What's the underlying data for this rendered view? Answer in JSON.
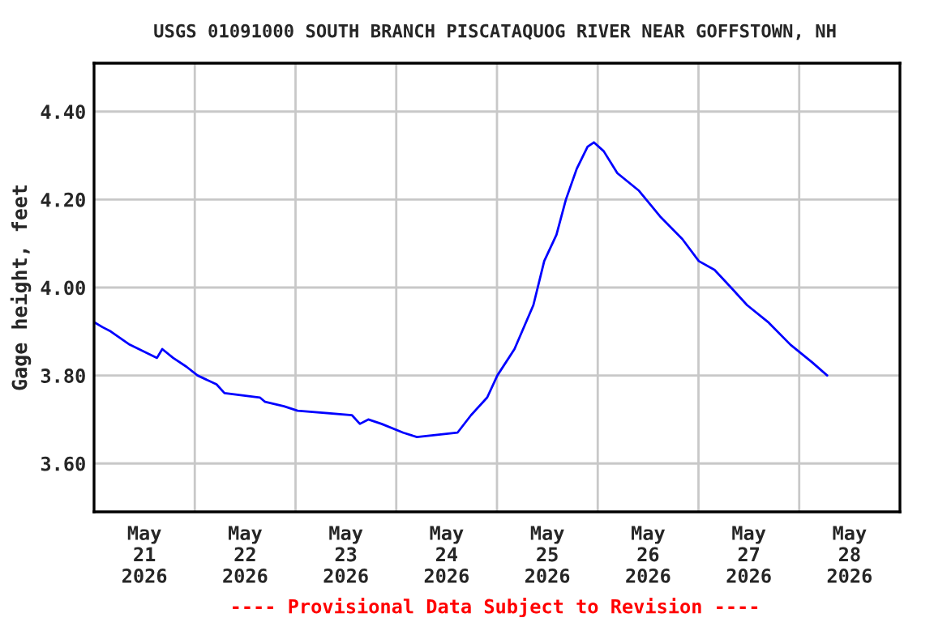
{
  "chart_data": {
    "type": "line",
    "title": "USGS 01091000 SOUTH BRANCH PISCATAQUOG RIVER NEAR GOFFSTOWN, NH",
    "ylabel": "Gage height, feet",
    "x": [
      "2026-05-21T00:15",
      "2026-05-21T02:00",
      "2026-05-21T04:00",
      "2026-05-21T08:30",
      "2026-05-21T15:00",
      "2026-05-21T16:15",
      "2026-05-21T18:50",
      "2026-05-21T22:00",
      "2026-05-22T00:40",
      "2026-05-22T05:10",
      "2026-05-22T07:05",
      "2026-05-22T15:30",
      "2026-05-22T16:45",
      "2026-05-22T21:15",
      "2026-05-23T00:30",
      "2026-05-23T13:25",
      "2026-05-23T15:20",
      "2026-05-23T17:20",
      "2026-05-23T20:30",
      "2026-05-24T01:40",
      "2026-05-24T04:55",
      "2026-05-24T14:35",
      "2026-05-24T17:50",
      "2026-05-24T21:40",
      "2026-05-25T00:05",
      "2026-05-25T04:10",
      "2026-05-25T08:40",
      "2026-05-25T11:15",
      "2026-05-25T14:10",
      "2026-05-25T16:25",
      "2026-05-25T19:00",
      "2026-05-25T21:35",
      "2026-05-25T23:05",
      "2026-05-26T01:25",
      "2026-05-26T04:40",
      "2026-05-26T09:50",
      "2026-05-26T15:00",
      "2026-05-26T20:10",
      "2026-05-27T00:05",
      "2026-05-27T03:50",
      "2026-05-27T07:45",
      "2026-05-27T11:35",
      "2026-05-27T16:45",
      "2026-05-27T21:55",
      "2026-05-28T03:05",
      "2026-05-28T06:40"
    ],
    "series": [
      {
        "color": "#0000ff",
        "values": [
          3.92,
          3.91,
          3.9,
          3.87,
          3.84,
          3.86,
          3.84,
          3.82,
          3.8,
          3.78,
          3.76,
          3.75,
          3.74,
          3.73,
          3.72,
          3.71,
          3.69,
          3.7,
          3.69,
          3.67,
          3.66,
          3.67,
          3.71,
          3.75,
          3.8,
          3.86,
          3.96,
          4.06,
          4.12,
          4.2,
          4.27,
          4.32,
          4.33,
          4.31,
          4.26,
          4.22,
          4.16,
          4.11,
          4.06,
          4.04,
          4.0,
          3.96,
          3.92,
          3.87,
          3.83,
          3.8
        ]
      }
    ],
    "xlim": [
      "2026-05-21",
      "2026-05-29"
    ],
    "xticks": [
      {
        "value": "2026-05-21T12:00",
        "label": "May\n21\n2026"
      },
      {
        "value": "2026-05-22T12:00",
        "label": "May\n22\n2026"
      },
      {
        "value": "2026-05-23T12:00",
        "label": "May\n23\n2026"
      },
      {
        "value": "2026-05-24T12:00",
        "label": "May\n24\n2026"
      },
      {
        "value": "2026-05-25T12:00",
        "label": "May\n25\n2026"
      },
      {
        "value": "2026-05-26T12:00",
        "label": "May\n26\n2026"
      },
      {
        "value": "2026-05-27T12:00",
        "label": "May\n27\n2026"
      },
      {
        "value": "2026-05-28T12:00",
        "label": "May\n28\n2026"
      },
      {
        "value": "2026-05-22",
        "label": null
      },
      {
        "value": "2026-05-23",
        "label": null
      },
      {
        "value": "2026-05-24",
        "label": null
      },
      {
        "value": "2026-05-25",
        "label": null
      },
      {
        "value": "2026-05-26",
        "label": null
      },
      {
        "value": "2026-05-27",
        "label": null
      },
      {
        "value": "2026-05-28",
        "label": null
      }
    ],
    "ylim": [
      3.49,
      4.51
    ],
    "yticks": [
      {
        "value": 3.6,
        "label": "3.60"
      },
      {
        "value": 3.8,
        "label": "3.80"
      },
      {
        "value": 4.0,
        "label": "4.00"
      },
      {
        "value": 4.2,
        "label": "4.20"
      },
      {
        "value": 4.4,
        "label": "4.40"
      }
    ],
    "grid": true,
    "annotations": [
      "---- Provisional Data Subject to Revision ----"
    ]
  }
}
